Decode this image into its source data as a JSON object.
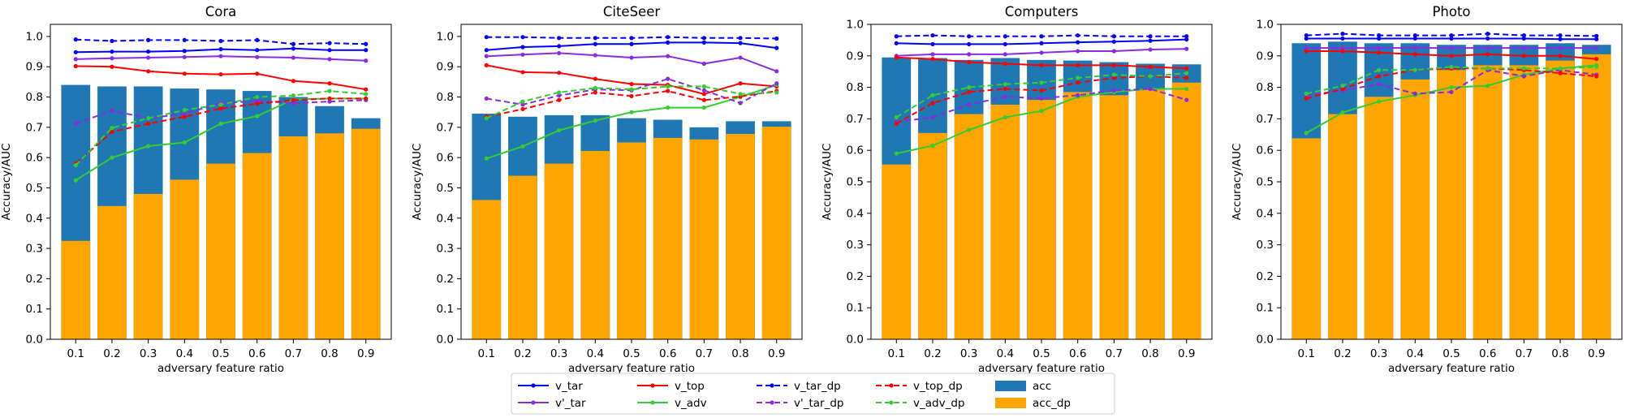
{
  "colors": {
    "acc": "#1f77b4",
    "acc_dp": "#ffa500",
    "v_tar": "#0000ff",
    "v_prime_tar": "#8a2be2",
    "v_top": "#ff0000",
    "v_adv": "#32cd32"
  },
  "legend": {
    "placement": "bottom-center",
    "entries": [
      {
        "key": "v_tar",
        "label": "v_tar",
        "style": "solid"
      },
      {
        "key": "v_prime_tar",
        "label": "v'_tar",
        "style": "solid"
      },
      {
        "key": "v_top",
        "label": "v_top",
        "style": "solid"
      },
      {
        "key": "v_adv",
        "label": "v_adv",
        "style": "solid"
      },
      {
        "key": "v_tar_dp",
        "label": "v_tar_dp",
        "style": "dashed"
      },
      {
        "key": "v_prime_tar_dp",
        "label": "v'_tar_dp",
        "style": "dashed"
      },
      {
        "key": "v_top_dp",
        "label": "v_top_dp",
        "style": "dashed"
      },
      {
        "key": "v_adv_dp",
        "label": "v_adv_dp",
        "style": "dashed"
      },
      {
        "key": "acc",
        "label": "acc",
        "style": "bar"
      },
      {
        "key": "acc_dp",
        "label": "acc_dp",
        "style": "bar"
      }
    ]
  },
  "chart_data": [
    {
      "type": "bar",
      "title": "Cora",
      "xlabel": "adversary feature ratio",
      "ylabel": "Accuracy/AUC",
      "ylim": [
        0,
        1.04
      ],
      "x": [
        0.1,
        0.2,
        0.3,
        0.4,
        0.5,
        0.6,
        0.7,
        0.8,
        0.9
      ],
      "x_ticks": [
        "0.1",
        "0.2",
        "0.3",
        "0.4",
        "0.5",
        "0.6",
        "0.7",
        "0.8",
        "0.9"
      ],
      "y_ticks": [
        "0.0",
        "0.1",
        "0.2",
        "0.3",
        "0.4",
        "0.5",
        "0.6",
        "0.7",
        "0.8",
        "0.9",
        "1.0"
      ],
      "bars": {
        "acc": [
          0.84,
          0.835,
          0.835,
          0.828,
          0.825,
          0.82,
          0.8,
          0.77,
          0.73
        ],
        "acc_dp": [
          0.325,
          0.44,
          0.48,
          0.527,
          0.58,
          0.615,
          0.67,
          0.68,
          0.695
        ]
      },
      "lines": {
        "v_tar": [
          0.948,
          0.95,
          0.95,
          0.952,
          0.958,
          0.955,
          0.96,
          0.955,
          0.955
        ],
        "v_prime_tar": [
          0.925,
          0.928,
          0.93,
          0.932,
          0.935,
          0.932,
          0.93,
          0.925,
          0.92
        ],
        "v_top": [
          0.902,
          0.9,
          0.885,
          0.877,
          0.875,
          0.877,
          0.853,
          0.845,
          0.825
        ],
        "v_adv": [
          0.525,
          0.6,
          0.638,
          0.65,
          0.712,
          0.737,
          0.792,
          0.795,
          0.795
        ],
        "v_tar_dp": [
          0.99,
          0.985,
          0.988,
          0.988,
          0.985,
          0.988,
          0.975,
          0.978,
          0.975
        ],
        "v_prime_tar_dp": [
          0.712,
          0.755,
          0.73,
          0.745,
          0.78,
          0.787,
          0.78,
          0.785,
          0.79
        ],
        "v_top_dp": [
          0.58,
          0.685,
          0.712,
          0.735,
          0.762,
          0.778,
          0.79,
          0.795,
          0.795
        ],
        "v_adv_dp": [
          0.575,
          0.698,
          0.73,
          0.757,
          0.775,
          0.8,
          0.805,
          0.82,
          0.81
        ]
      }
    },
    {
      "type": "bar",
      "title": "CiteSeer",
      "xlabel": "adversary feature ratio",
      "ylabel": "Accuracy/AUC",
      "ylim": [
        0,
        1.04
      ],
      "x": [
        0.1,
        0.2,
        0.3,
        0.4,
        0.5,
        0.6,
        0.7,
        0.8,
        0.9
      ],
      "x_ticks": [
        "0.1",
        "0.2",
        "0.3",
        "0.4",
        "0.5",
        "0.6",
        "0.7",
        "0.8",
        "0.9"
      ],
      "y_ticks": [
        "0.0",
        "0.1",
        "0.2",
        "0.3",
        "0.4",
        "0.5",
        "0.6",
        "0.7",
        "0.8",
        "0.9",
        "1.0"
      ],
      "bars": {
        "acc": [
          0.745,
          0.735,
          0.74,
          0.74,
          0.73,
          0.725,
          0.7,
          0.72,
          0.72
        ],
        "acc_dp": [
          0.46,
          0.54,
          0.58,
          0.622,
          0.65,
          0.665,
          0.66,
          0.678,
          0.702
        ]
      },
      "lines": {
        "v_tar": [
          0.955,
          0.965,
          0.968,
          0.975,
          0.975,
          0.98,
          0.98,
          0.978,
          0.962
        ],
        "v_prime_tar": [
          0.935,
          0.94,
          0.945,
          0.938,
          0.93,
          0.935,
          0.91,
          0.93,
          0.885
        ],
        "v_top": [
          0.905,
          0.882,
          0.88,
          0.86,
          0.843,
          0.84,
          0.81,
          0.845,
          0.835
        ],
        "v_adv": [
          0.597,
          0.637,
          0.69,
          0.722,
          0.75,
          0.765,
          0.765,
          0.8,
          0.84
        ],
        "v_tar_dp": [
          0.998,
          0.998,
          0.995,
          0.995,
          0.995,
          0.998,
          0.995,
          0.995,
          0.993
        ],
        "v_prime_tar_dp": [
          0.795,
          0.775,
          0.805,
          0.825,
          0.822,
          0.86,
          0.822,
          0.78,
          0.845
        ],
        "v_top_dp": [
          0.735,
          0.76,
          0.79,
          0.815,
          0.803,
          0.82,
          0.79,
          0.802,
          0.82
        ],
        "v_adv_dp": [
          0.73,
          0.785,
          0.815,
          0.83,
          0.825,
          0.835,
          0.835,
          0.81,
          0.815
        ]
      }
    },
    {
      "type": "bar",
      "title": "Computers",
      "xlabel": "adversary feature ratio",
      "ylabel": "Accuracy/AUC",
      "ylim": [
        0,
        1.0
      ],
      "x": [
        0.1,
        0.2,
        0.3,
        0.4,
        0.5,
        0.6,
        0.7,
        0.8,
        0.9
      ],
      "x_ticks": [
        "0.1",
        "0.2",
        "0.3",
        "0.4",
        "0.5",
        "0.6",
        "0.7",
        "0.8",
        "0.9"
      ],
      "y_ticks": [
        "0.0",
        "0.1",
        "0.2",
        "0.3",
        "0.4",
        "0.5",
        "0.6",
        "0.7",
        "0.8",
        "0.9",
        "1.0"
      ],
      "bars": {
        "acc": [
          0.895,
          0.893,
          0.887,
          0.893,
          0.887,
          0.885,
          0.88,
          0.875,
          0.873
        ],
        "acc_dp": [
          0.555,
          0.655,
          0.715,
          0.745,
          0.76,
          0.785,
          0.775,
          0.795,
          0.815
        ]
      },
      "lines": {
        "v_tar": [
          0.94,
          0.937,
          0.937,
          0.937,
          0.94,
          0.943,
          0.945,
          0.948,
          0.952
        ],
        "v_prime_tar": [
          0.9,
          0.905,
          0.905,
          0.905,
          0.91,
          0.915,
          0.915,
          0.92,
          0.922
        ],
        "v_top": [
          0.895,
          0.89,
          0.88,
          0.875,
          0.87,
          0.87,
          0.87,
          0.865,
          0.86
        ],
        "v_adv": [
          0.59,
          0.615,
          0.665,
          0.705,
          0.725,
          0.77,
          0.785,
          0.795,
          0.795
        ],
        "v_tar_dp": [
          0.962,
          0.965,
          0.962,
          0.962,
          0.962,
          0.965,
          0.962,
          0.962,
          0.962
        ],
        "v_prime_tar_dp": [
          0.69,
          0.705,
          0.745,
          0.77,
          0.765,
          0.775,
          0.79,
          0.795,
          0.76
        ],
        "v_top_dp": [
          0.685,
          0.75,
          0.785,
          0.795,
          0.79,
          0.815,
          0.83,
          0.835,
          0.83
        ],
        "v_adv_dp": [
          0.705,
          0.775,
          0.8,
          0.81,
          0.815,
          0.83,
          0.84,
          0.835,
          0.845
        ]
      }
    },
    {
      "type": "bar",
      "title": "Photo",
      "xlabel": "adversary feature ratio",
      "ylabel": "Accuracy/AUC",
      "ylim": [
        0,
        1.0
      ],
      "x": [
        0.1,
        0.2,
        0.3,
        0.4,
        0.5,
        0.6,
        0.7,
        0.8,
        0.9
      ],
      "x_ticks": [
        "0.1",
        "0.2",
        "0.3",
        "0.4",
        "0.5",
        "0.6",
        "0.7",
        "0.8",
        "0.9"
      ],
      "y_ticks": [
        "0.0",
        "0.1",
        "0.2",
        "0.3",
        "0.4",
        "0.5",
        "0.6",
        "0.7",
        "0.8",
        "0.9",
        "1.0"
      ],
      "bars": {
        "acc": [
          0.94,
          0.945,
          0.94,
          0.94,
          0.935,
          0.935,
          0.935,
          0.94,
          0.935
        ],
        "acc_dp": [
          0.638,
          0.715,
          0.77,
          0.825,
          0.855,
          0.87,
          0.87,
          0.885,
          0.905
        ]
      },
      "lines": {
        "v_tar": [
          0.955,
          0.955,
          0.955,
          0.955,
          0.955,
          0.955,
          0.955,
          0.953,
          0.953
        ],
        "v_prime_tar": [
          0.925,
          0.925,
          0.925,
          0.925,
          0.925,
          0.925,
          0.925,
          0.925,
          0.925
        ],
        "v_top": [
          0.915,
          0.915,
          0.91,
          0.905,
          0.9,
          0.905,
          0.9,
          0.9,
          0.89
        ],
        "v_adv": [
          0.655,
          0.72,
          0.755,
          0.775,
          0.8,
          0.805,
          0.84,
          0.86,
          0.87
        ],
        "v_tar_dp": [
          0.965,
          0.97,
          0.965,
          0.965,
          0.965,
          0.97,
          0.965,
          0.965,
          0.963
        ],
        "v_prime_tar_dp": [
          0.775,
          0.79,
          0.81,
          0.78,
          0.785,
          0.855,
          0.835,
          0.855,
          0.84
        ],
        "v_top_dp": [
          0.765,
          0.795,
          0.835,
          0.855,
          0.86,
          0.86,
          0.855,
          0.845,
          0.835
        ],
        "v_adv_dp": [
          0.78,
          0.805,
          0.855,
          0.855,
          0.865,
          0.86,
          0.86,
          0.86,
          0.865
        ]
      }
    }
  ]
}
